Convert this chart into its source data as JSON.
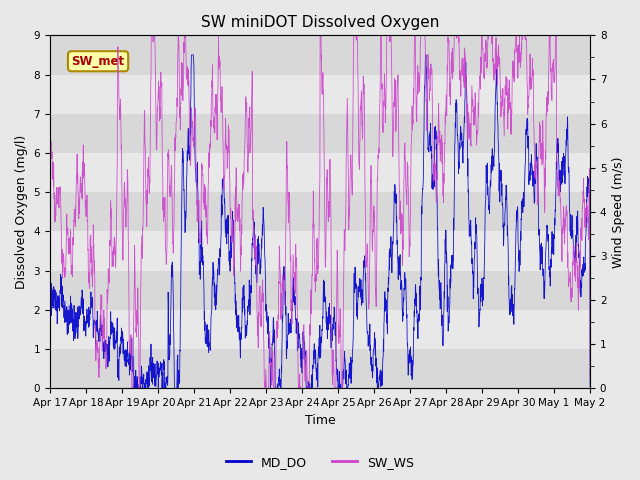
{
  "title": "SW miniDOT Dissolved Oxygen",
  "xlabel": "Time",
  "ylabel_left": "Dissolved Oxygen (mg/l)",
  "ylabel_right": "Wind Speed (m/s)",
  "ylim_left": [
    0.0,
    9.0
  ],
  "ylim_right": [
    0.0,
    8.0
  ],
  "yticks_left": [
    0.0,
    1.0,
    2.0,
    3.0,
    4.0,
    5.0,
    6.0,
    7.0,
    8.0,
    9.0
  ],
  "yticks_right": [
    0.0,
    1.0,
    2.0,
    3.0,
    4.0,
    5.0,
    6.0,
    7.0,
    8.0
  ],
  "xtick_labels": [
    "Apr 17",
    "Apr 18",
    "Apr 19",
    "Apr 20",
    "Apr 21",
    "Apr 22",
    "Apr 23",
    "Apr 24",
    "Apr 25",
    "Apr 26",
    "Apr 27",
    "Apr 28",
    "Apr 29",
    "Apr 30",
    "May 1",
    "May 2"
  ],
  "color_do": "#0000cc",
  "color_ws": "#cc44cc",
  "legend_label_do": "MD_DO",
  "legend_label_ws": "SW_WS",
  "annotation_text": "SW_met",
  "annotation_color": "#aa0000",
  "annotation_bg": "#ffffaa",
  "annotation_border": "#aa8800",
  "background_color": "#e8e8e8",
  "band_colors": [
    "#d8d8d8",
    "#e8e8e8"
  ],
  "grid_color": "#cccccc",
  "title_fontsize": 11,
  "label_fontsize": 9,
  "tick_fontsize": 7.5
}
